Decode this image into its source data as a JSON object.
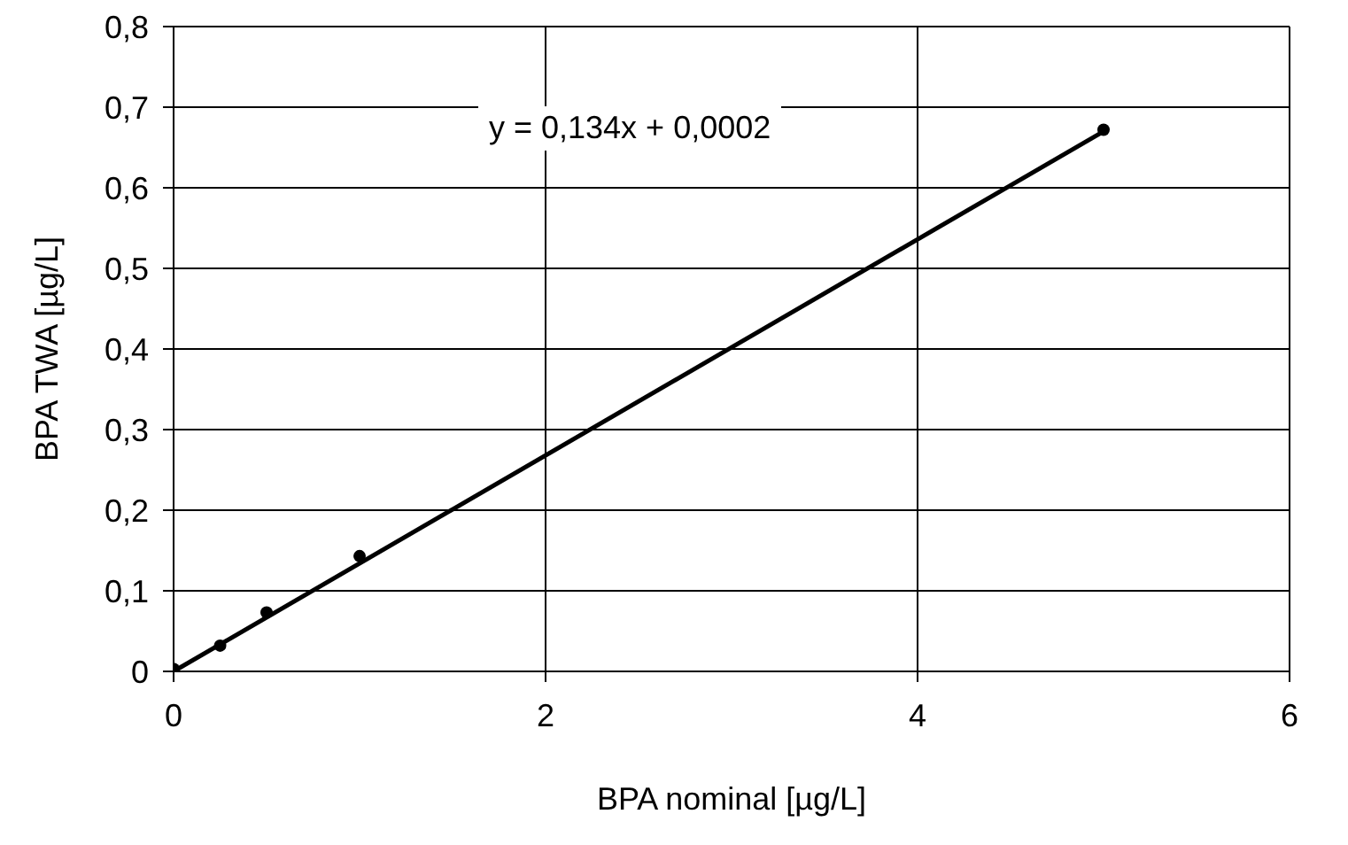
{
  "chart_data": {
    "type": "scatter",
    "xlabel": "BPA nominal [µg/L]",
    "ylabel": "BPA TWA [µg/L]",
    "x": [
      0,
      0.25,
      0.5,
      1,
      5
    ],
    "series": [
      {
        "color": "#000000",
        "marker": "circle",
        "values": [
          0.003,
          0.032,
          0.073,
          0.143,
          0.672
        ]
      },
      {
        "type": "line",
        "color": "#000000",
        "marker": "none",
        "x": [
          0,
          5
        ],
        "values": [
          0,
          0.67
        ]
      }
    ],
    "xlim": [
      0,
      6
    ],
    "xticks": [
      0,
      2,
      4,
      6
    ],
    "ylim": [
      0,
      0.8
    ],
    "yticks": [
      0,
      {
        "value": 0.1,
        "label": "0,1"
      },
      {
        "value": 0.2,
        "label": "0,2"
      },
      {
        "value": 0.3,
        "label": "0,3"
      },
      {
        "value": 0.4,
        "label": "0,4"
      },
      {
        "value": 0.5,
        "label": "0,5"
      },
      {
        "value": 0.6,
        "label": "0,6"
      },
      {
        "value": 0.7,
        "label": "0,7"
      },
      {
        "value": 0.8,
        "label": "0,8"
      }
    ],
    "grid": true,
    "annotations": [
      "y = 0,134x + 0,0002"
    ]
  }
}
